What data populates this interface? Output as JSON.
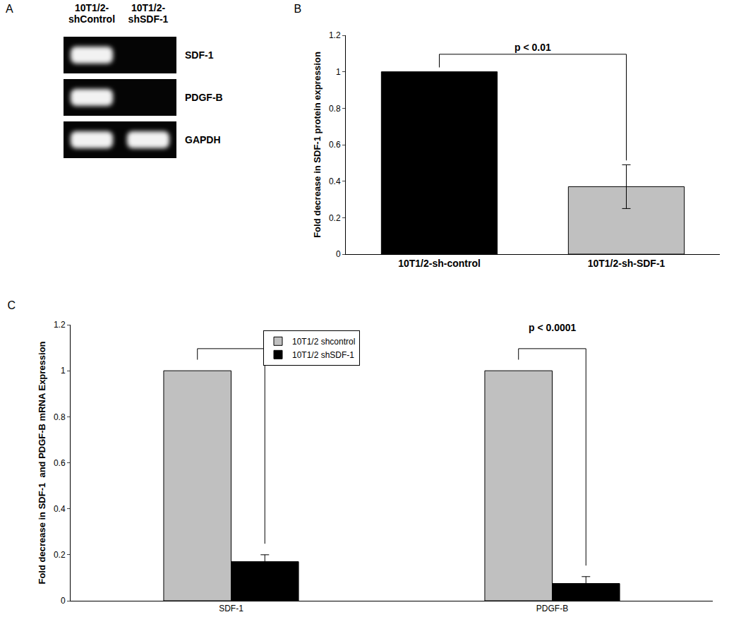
{
  "gel": {
    "title": "A",
    "lanes": [
      [
        "10T1/2-",
        "shControl"
      ],
      [
        "10T1/2-",
        "shSDF-1"
      ]
    ],
    "rows": [
      {
        "label": "SDF-1",
        "bands": [
          true,
          false
        ]
      },
      {
        "label": "PDGF-B",
        "bands": [
          true,
          false
        ]
      },
      {
        "label": "GAPDH",
        "bands": [
          true,
          true
        ]
      }
    ]
  },
  "chart_data": [
    {
      "type": "bar",
      "title": "B",
      "categories": [
        "10T1/2-sh-control",
        "10T1/2-sh-SDF-1"
      ],
      "values": [
        1,
        0.37
      ],
      "errors": [
        null,
        0.12
      ],
      "colors": [
        "#000000",
        "#c0c0c0"
      ],
      "ylabel": "Fold decrease in SDF-1 protein expression",
      "ylim": [
        0,
        1.2
      ],
      "yticks": [
        0,
        0.2,
        0.4,
        0.6,
        0.8,
        1,
        1.2
      ],
      "grid": false,
      "annotations": [
        {
          "text": "p < 0.01"
        }
      ]
    },
    {
      "type": "bar",
      "title": "C",
      "categories": [
        "SDF-1",
        "PDGF-B"
      ],
      "series": [
        {
          "name": "10T1/2 shcontrol",
          "color": "#c0c0c0",
          "values": [
            1,
            1
          ],
          "errors": [
            null,
            null
          ]
        },
        {
          "name": "10T1/2 shSDF-1",
          "color": "#000000",
          "values": [
            0.17,
            0.075
          ],
          "errors": [
            0.03,
            0.03
          ]
        }
      ],
      "ylabel": "Fold decrease in SDF-1  and PDGF-B mRNA Expression",
      "ylim": [
        0,
        1.2
      ],
      "yticks": [
        0,
        0.2,
        0.4,
        0.6,
        0.8,
        1,
        1.2
      ],
      "grid": false,
      "legend": "top",
      "annotations": [
        {
          "text": "p < 0.0001",
          "category": "PDGF-B"
        }
      ]
    }
  ]
}
